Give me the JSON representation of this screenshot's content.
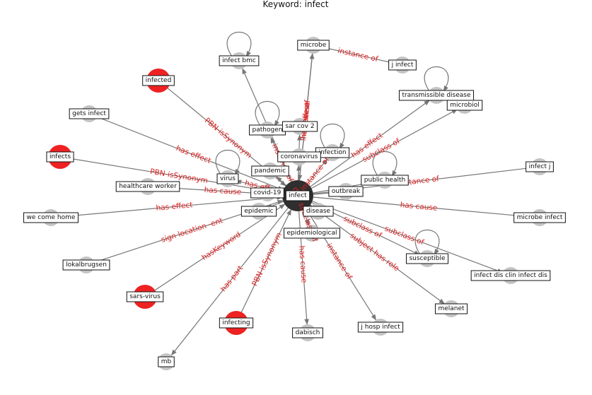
{
  "title": "Keyword: infect",
  "colors": {
    "center": "#2f2f2f",
    "highlight": "#ee2222",
    "normal": "#c4c4c4",
    "edge": "#777777",
    "edge_label": "#d22222"
  },
  "nodes": [
    {
      "id": "infect",
      "label": "infect",
      "kind": "center"
    },
    {
      "id": "microbe",
      "label": "microbe",
      "kind": "normal"
    },
    {
      "id": "infect_bmc",
      "label": "infect bmc",
      "kind": "normal"
    },
    {
      "id": "j_infect",
      "label": "j infect",
      "kind": "normal"
    },
    {
      "id": "infected",
      "label": "infected",
      "kind": "highlight"
    },
    {
      "id": "transmissible_disease",
      "label": "transmissible disease",
      "kind": "normal"
    },
    {
      "id": "microbiol",
      "label": "microbiol",
      "kind": "normal"
    },
    {
      "id": "gets_infect",
      "label": "gets infect",
      "kind": "normal"
    },
    {
      "id": "pathogen",
      "label": "pathogen",
      "kind": "normal"
    },
    {
      "id": "sar_cov_2",
      "label": "sar cov 2",
      "kind": "normal"
    },
    {
      "id": "infects",
      "label": "infects",
      "kind": "highlight"
    },
    {
      "id": "infection",
      "label": "infection",
      "kind": "normal"
    },
    {
      "id": "coronavirus",
      "label": "coronavirus",
      "kind": "normal"
    },
    {
      "id": "infect_j",
      "label": "infect j",
      "kind": "normal"
    },
    {
      "id": "pandemic",
      "label": "pandemic",
      "kind": "normal"
    },
    {
      "id": "virus",
      "label": "virus",
      "kind": "normal"
    },
    {
      "id": "public_health",
      "label": "public health",
      "kind": "normal"
    },
    {
      "id": "healthcare_worker",
      "label": "healthcare worker",
      "kind": "normal"
    },
    {
      "id": "covid_19",
      "label": "covid-19",
      "kind": "normal"
    },
    {
      "id": "outbreak",
      "label": "outbreak",
      "kind": "normal"
    },
    {
      "id": "we_come_home",
      "label": "we come home",
      "kind": "normal"
    },
    {
      "id": "epidemic",
      "label": "epidemic",
      "kind": "normal"
    },
    {
      "id": "disease",
      "label": "disease",
      "kind": "normal"
    },
    {
      "id": "microbe_infect",
      "label": "microbe infect",
      "kind": "normal"
    },
    {
      "id": "epidemiological",
      "label": "epidemiological",
      "kind": "normal"
    },
    {
      "id": "lokalbrugsen",
      "label": "lokalbrugsen",
      "kind": "normal"
    },
    {
      "id": "susceptible",
      "label": "susceptible",
      "kind": "normal"
    },
    {
      "id": "infect_dis_clin_infect_dis",
      "label": "infect dis clin infect dis",
      "kind": "normal"
    },
    {
      "id": "sars_virus",
      "label": "sars-virus",
      "kind": "highlight"
    },
    {
      "id": "melanet",
      "label": "melanet",
      "kind": "normal"
    },
    {
      "id": "infecting",
      "label": "infecting",
      "kind": "highlight"
    },
    {
      "id": "j_hosp_infect",
      "label": "j hosp infect",
      "kind": "normal"
    },
    {
      "id": "dabisch",
      "label": "dabisch",
      "kind": "normal"
    },
    {
      "id": "mb",
      "label": "mb",
      "kind": "normal"
    }
  ],
  "edges": [
    {
      "source": "infect",
      "target": "infect_bmc",
      "label": ""
    },
    {
      "source": "infect_bmc",
      "target": "infect_bmc",
      "label": ""
    },
    {
      "source": "infect",
      "target": "microbe",
      "label": "has effect"
    },
    {
      "source": "infect",
      "target": "microbe",
      "label": "instance of"
    },
    {
      "source": "microbe",
      "target": "infect",
      "label": "has cause"
    },
    {
      "source": "microbe",
      "target": "j_infect",
      "label": "instance of"
    },
    {
      "source": "infected",
      "target": "infect",
      "label": "PBN-isSynonym"
    },
    {
      "source": "infect",
      "target": "transmissible_disease",
      "label": "has effect"
    },
    {
      "source": "transmissible_disease",
      "target": "transmissible_disease",
      "label": ""
    },
    {
      "source": "infect",
      "target": "microbiol",
      "label": "subclass of"
    },
    {
      "source": "gets_infect",
      "target": "infect",
      "label": "has effect"
    },
    {
      "source": "infect",
      "target": "pathogen",
      "label": "instance of"
    },
    {
      "source": "pathogen",
      "target": "pathogen",
      "label": ""
    },
    {
      "source": "infect",
      "target": "sar_cov_2",
      "label": ""
    },
    {
      "source": "infects",
      "target": "infect",
      "label": "PBN-isSynonym"
    },
    {
      "source": "infect",
      "target": "infection",
      "label": "instance of"
    },
    {
      "source": "infection",
      "target": "infection",
      "label": ""
    },
    {
      "source": "infect",
      "target": "coronavirus",
      "label": ""
    },
    {
      "source": "infect",
      "target": "infect_j",
      "label": "instance of"
    },
    {
      "source": "infect",
      "target": "pandemic",
      "label": ""
    },
    {
      "source": "infect",
      "target": "virus",
      "label": "has effect"
    },
    {
      "source": "virus",
      "target": "virus",
      "label": ""
    },
    {
      "source": "infect",
      "target": "public_health",
      "label": ""
    },
    {
      "source": "public_health",
      "target": "public_health",
      "label": ""
    },
    {
      "source": "healthcare_worker",
      "target": "infect",
      "label": "has cause"
    },
    {
      "source": "infect",
      "target": "covid_19",
      "label": ""
    },
    {
      "source": "infect",
      "target": "outbreak",
      "label": ""
    },
    {
      "source": "we_come_home",
      "target": "infect",
      "label": "has effect"
    },
    {
      "source": "infect",
      "target": "epidemic",
      "label": ""
    },
    {
      "source": "infect",
      "target": "disease",
      "label": ""
    },
    {
      "source": "infect",
      "target": "microbe_infect",
      "label": "has cause"
    },
    {
      "source": "infect",
      "target": "epidemiological",
      "label": "diff. subclass of"
    },
    {
      "source": "lokalbrugsen",
      "target": "infect",
      "label": "sign location -ent"
    },
    {
      "source": "infect",
      "target": "susceptible",
      "label": "subclass of"
    },
    {
      "source": "susceptible",
      "target": "susceptible",
      "label": ""
    },
    {
      "source": "infect",
      "target": "infect_dis_clin_infect_dis",
      "label": "subclass of"
    },
    {
      "source": "sars_virus",
      "target": "infect",
      "label": "hasKeyword"
    },
    {
      "source": "infect",
      "target": "melanet",
      "label": "subject has role"
    },
    {
      "source": "infecting",
      "target": "infect",
      "label": "PBN-isSynonym"
    },
    {
      "source": "infect",
      "target": "j_hosp_infect",
      "label": "instance of"
    },
    {
      "source": "infect",
      "target": "dabisch",
      "label": "has cause"
    },
    {
      "source": "infect",
      "target": "mb",
      "label": "has part"
    }
  ]
}
